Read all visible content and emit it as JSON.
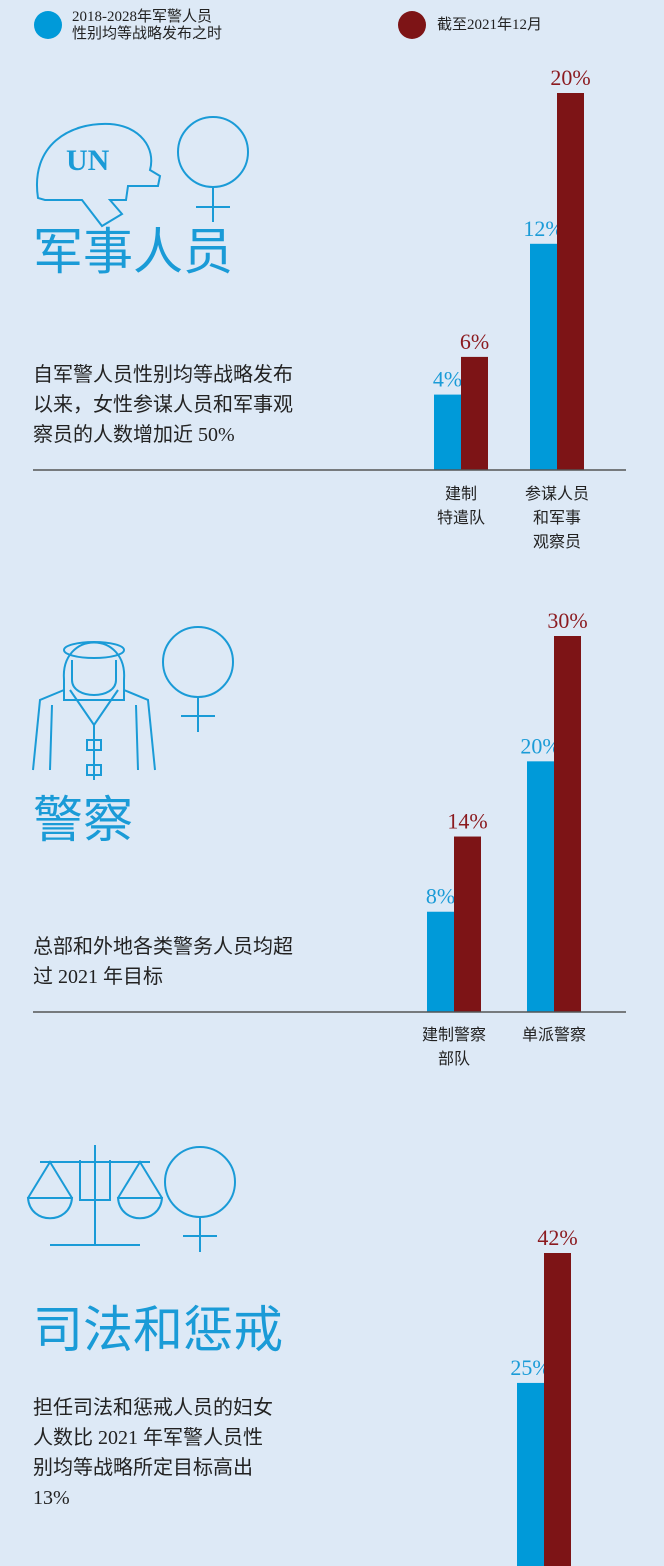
{
  "legend": [
    {
      "name": "2018-2028年军警人员\n性别均等战略发布之时",
      "color": "#009ad9"
    },
    {
      "name": "截至2021年12月",
      "color": "#7d1416"
    }
  ],
  "chart_data": [
    {
      "type": "bar",
      "title": "军事人员",
      "description": "自军警人员性别均等战略发布\n以来，女性参谋人员和军事观\n察员的人数增加近 50%",
      "categories": [
        "建制\n特遣队",
        "参谋人员\n和军事\n观察员"
      ],
      "series": [
        {
          "values": [
            4,
            12
          ],
          "value_labels": [
            "4%",
            "12%"
          ]
        },
        {
          "values": [
            6,
            20
          ],
          "value_labels": [
            "6%",
            "20%"
          ]
        }
      ]
    },
    {
      "type": "bar",
      "title": "警察",
      "description": "总部和外地各类警务人员均超\n过 2021 年目标",
      "categories": [
        "建制警察\n部队",
        "单派警察"
      ],
      "series": [
        {
          "values": [
            8,
            20
          ],
          "value_labels": [
            "8%",
            "20%"
          ]
        },
        {
          "values": [
            14,
            30
          ],
          "value_labels": [
            "14%",
            "30%"
          ]
        }
      ]
    },
    {
      "type": "bar",
      "title": "司法和惩戒",
      "description": "担任司法和惩戒人员的妇女\n人数比 2021 年军警人员性\n别均等战略所定目标高出\n13%",
      "categories": [
        null
      ],
      "series": [
        {
          "values": [
            25
          ],
          "value_labels": [
            "25%"
          ]
        },
        {
          "values": [
            42
          ],
          "value_labels": [
            "42%"
          ]
        }
      ]
    }
  ]
}
